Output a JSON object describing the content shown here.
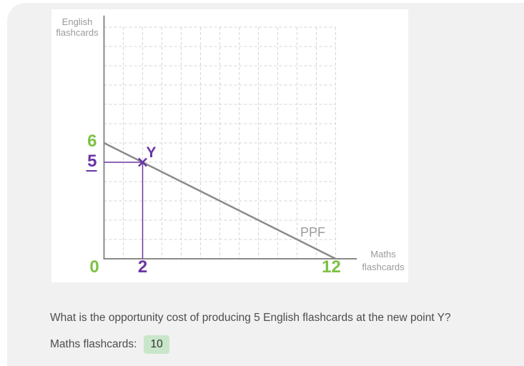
{
  "chart_data": {
    "type": "line",
    "xlabel": "Maths flashcards",
    "ylabel": "English flashcards",
    "xlim": [
      0,
      13
    ],
    "ylim": [
      0,
      13
    ],
    "grid": true,
    "grid_units": 12,
    "series": [
      {
        "name": "PPF",
        "x": [
          0,
          12
        ],
        "y": [
          6,
          0
        ]
      }
    ],
    "points": [
      {
        "label": "Y",
        "x": 2,
        "y": 5,
        "marker": "x"
      }
    ],
    "x_tick_labels": [
      {
        "value": 0,
        "label": "0"
      },
      {
        "value": 2,
        "label": "2"
      },
      {
        "value": 12,
        "label": "12"
      }
    ],
    "y_tick_labels": [
      {
        "value": 6,
        "label": "6"
      },
      {
        "value": 5,
        "label": "5",
        "underlined": true
      }
    ]
  },
  "chart": {
    "y_axis_title_line1": "English",
    "y_axis_title_line2": "flashcards",
    "x_axis_title_line1": "Maths",
    "x_axis_title_line2": "flashcards"
  },
  "question": {
    "text": "What is the opportunity cost of producing 5 English flashcards at the new point Y?",
    "answer_label": "Maths flashcards:",
    "answer_value": "10"
  },
  "colors": {
    "green": "#7cc244",
    "purple": "#6b35a3",
    "axis_line": "#8a8a8a",
    "label_gray": "#9a9a9a",
    "grid_line": "#d6d6d6",
    "question_text": "#4d4d4d",
    "answer_bg": "#c9e6ca",
    "panel_bg": "#f1f1f2",
    "card_bg": "#ffffff"
  }
}
